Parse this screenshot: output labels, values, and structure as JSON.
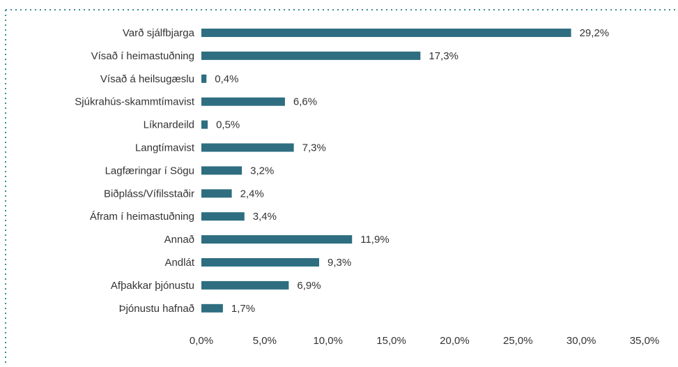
{
  "chart_data": {
    "type": "bar",
    "orientation": "horizontal",
    "categories": [
      "Varð sjálfbjarga",
      "Vísað í heimastuðning",
      "Vísað á heilsugæslu",
      "Sjúkrahús-skammtímavist",
      "Líknardeild",
      "Langtímavist",
      "Lagfæringar í Sögu",
      "Biðpláss/Vífilsstaðir",
      "Áfram í heimastuðning",
      "Annað",
      "Andlát",
      "Afþakkar þjónustu",
      "Þjónustu hafnað"
    ],
    "values": [
      29.2,
      17.3,
      0.4,
      6.6,
      0.5,
      7.3,
      3.2,
      2.4,
      3.4,
      11.9,
      9.3,
      6.9,
      1.7
    ],
    "value_labels": [
      "29,2%",
      "17,3%",
      "0,4%",
      "6,6%",
      "0,5%",
      "7,3%",
      "3,2%",
      "2,4%",
      "3,4%",
      "11,9%",
      "9,3%",
      "6,9%",
      "1,7%"
    ],
    "color": "#2e6e80",
    "xlim": [
      0,
      35
    ],
    "xticks": [
      {
        "value": 0,
        "label": "0,0%"
      },
      {
        "value": 5,
        "label": "5,0%"
      },
      {
        "value": 10,
        "label": "10,0%"
      },
      {
        "value": 15,
        "label": "15,0%"
      },
      {
        "value": 20,
        "label": "20,0%"
      },
      {
        "value": 25,
        "label": "25,0%"
      },
      {
        "value": 30,
        "label": "30,0%"
      },
      {
        "value": 35,
        "label": "35,0%"
      }
    ],
    "grid": false
  }
}
